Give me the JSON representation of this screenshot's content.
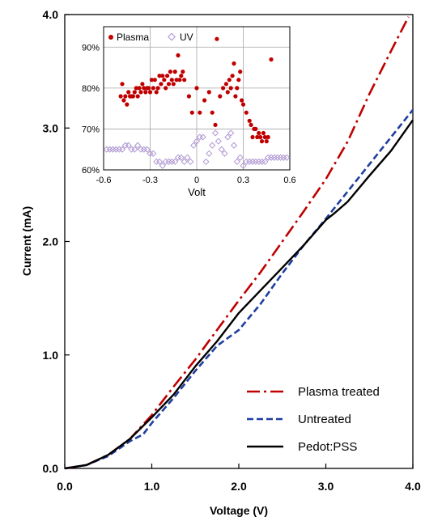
{
  "chart_data": [
    {
      "type": "line",
      "xlabel": "Voltage (V)",
      "ylabel": "Current  (mA)",
      "xlim": [
        0,
        4
      ],
      "ylim": [
        0,
        4
      ],
      "xticks": [
        "0.0",
        "1.0",
        "2.0",
        "3.0",
        "4.0"
      ],
      "yticks": [
        "0.0",
        "1.0",
        "2.0",
        "3.0",
        "4.0"
      ],
      "legend_position": "bottom-right",
      "series": [
        {
          "name": "Plasma treated",
          "color": "#c00000",
          "style": "dash-dot",
          "x": [
            0,
            0.25,
            0.5,
            0.75,
            1.0,
            1.25,
            1.5,
            1.75,
            2.0,
            2.25,
            2.5,
            2.75,
            3.0,
            3.25,
            3.5,
            3.75,
            3.95
          ],
          "y": [
            0,
            0.03,
            0.12,
            0.26,
            0.47,
            0.72,
            0.96,
            1.22,
            1.48,
            1.73,
            2.0,
            2.27,
            2.55,
            2.88,
            3.3,
            3.68,
            3.98
          ]
        },
        {
          "name": "Untreated",
          "color": "#1f3f9f",
          "style": "dashed",
          "x": [
            0,
            0.25,
            0.5,
            0.75,
            0.9,
            1.0,
            1.25,
            1.5,
            1.75,
            2.0,
            2.25,
            2.5,
            2.75,
            3.0,
            3.25,
            3.5,
            3.75,
            4.0
          ],
          "y": [
            0,
            0.03,
            0.11,
            0.24,
            0.3,
            0.4,
            0.62,
            0.86,
            1.08,
            1.22,
            1.45,
            1.72,
            1.97,
            2.2,
            2.44,
            2.68,
            2.92,
            3.16
          ]
        },
        {
          "name": "Pedot:PSS",
          "color": "#000000",
          "style": "solid",
          "x": [
            0,
            0.25,
            0.5,
            0.75,
            1.0,
            1.25,
            1.5,
            1.75,
            2.0,
            2.25,
            2.5,
            2.75,
            3.0,
            3.1,
            3.25,
            3.5,
            3.75,
            4.0
          ],
          "y": [
            0,
            0.03,
            0.12,
            0.26,
            0.45,
            0.65,
            0.9,
            1.12,
            1.37,
            1.57,
            1.77,
            1.97,
            2.19,
            2.25,
            2.35,
            2.58,
            2.8,
            3.07
          ]
        }
      ]
    },
    {
      "type": "scatter",
      "xlabel": "Volt",
      "xlim": [
        -0.6,
        0.6
      ],
      "ylim": [
        60,
        95
      ],
      "xticks": [
        "-0.6",
        "-0.3",
        "0",
        "0.3",
        "0.6"
      ],
      "yticks": [
        "60%",
        "70%",
        "80%",
        "90%"
      ],
      "legend_position": "top-left",
      "series": [
        {
          "name": "Plasma",
          "color": "#c00000",
          "marker": "circle",
          "x": [
            -0.49,
            -0.48,
            -0.47,
            -0.46,
            -0.45,
            -0.44,
            -0.43,
            -0.42,
            -0.41,
            -0.4,
            -0.39,
            -0.38,
            -0.37,
            -0.36,
            -0.35,
            -0.34,
            -0.33,
            -0.32,
            -0.31,
            -0.3,
            -0.29,
            -0.28,
            -0.27,
            -0.26,
            -0.25,
            -0.24,
            -0.23,
            -0.22,
            -0.21,
            -0.2,
            -0.19,
            -0.18,
            -0.17,
            -0.16,
            -0.15,
            -0.14,
            -0.13,
            -0.12,
            -0.11,
            -0.1,
            -0.09,
            -0.08,
            -0.05,
            -0.03,
            0.0,
            0.02,
            0.05,
            0.08,
            0.1,
            0.12,
            0.13,
            0.15,
            0.17,
            0.19,
            0.2,
            0.21,
            0.22,
            0.23,
            0.24,
            0.25,
            0.26,
            0.27,
            0.28,
            0.29,
            0.3,
            0.32,
            0.34,
            0.35,
            0.36,
            0.37,
            0.38,
            0.39,
            0.4,
            0.41,
            0.42,
            0.43,
            0.44,
            0.45,
            0.46,
            0.48
          ],
          "y": [
            78,
            81,
            77,
            78,
            76,
            79,
            78,
            78,
            78,
            79,
            80,
            78,
            80,
            79,
            81,
            80,
            79,
            80,
            80,
            79,
            82,
            80,
            82,
            79,
            80,
            83,
            81,
            83,
            82,
            80,
            83,
            81,
            84,
            82,
            81,
            84,
            82,
            88,
            82,
            83,
            84,
            82,
            78,
            74,
            80,
            74,
            77,
            79,
            74,
            71,
            92,
            78,
            80,
            81,
            79,
            82,
            80,
            83,
            86,
            78,
            80,
            82,
            84,
            77,
            76,
            74,
            72,
            71,
            68,
            70,
            70,
            68,
            69,
            68,
            67,
            69,
            68,
            67,
            68,
            87
          ]
        },
        {
          "name": "UV",
          "color": "#a98fcf",
          "marker": "diamond",
          "x": [
            -0.58,
            -0.56,
            -0.54,
            -0.52,
            -0.5,
            -0.48,
            -0.46,
            -0.44,
            -0.42,
            -0.4,
            -0.38,
            -0.36,
            -0.34,
            -0.32,
            -0.3,
            -0.28,
            -0.26,
            -0.24,
            -0.22,
            -0.2,
            -0.18,
            -0.16,
            -0.14,
            -0.12,
            -0.1,
            -0.08,
            -0.06,
            -0.04,
            -0.02,
            0.0,
            0.02,
            0.04,
            0.06,
            0.08,
            0.1,
            0.12,
            0.14,
            0.16,
            0.18,
            0.2,
            0.22,
            0.24,
            0.26,
            0.28,
            0.3,
            0.32,
            0.34,
            0.36,
            0.38,
            0.4,
            0.42,
            0.44,
            0.46,
            0.48,
            0.5,
            0.52,
            0.54,
            0.56,
            0.58
          ],
          "y": [
            65,
            65,
            65,
            65,
            65,
            65,
            66,
            66,
            65,
            65,
            66,
            65,
            65,
            65,
            64,
            64,
            62,
            62,
            61,
            62,
            62,
            62,
            62,
            63,
            63,
            62,
            63,
            62,
            66,
            67,
            68,
            68,
            62,
            64,
            66,
            69,
            67,
            65,
            64,
            68,
            69,
            66,
            62,
            63,
            61,
            62,
            62,
            62,
            62,
            62,
            62,
            62,
            63,
            63,
            63,
            63,
            63,
            63,
            63
          ]
        }
      ]
    }
  ]
}
